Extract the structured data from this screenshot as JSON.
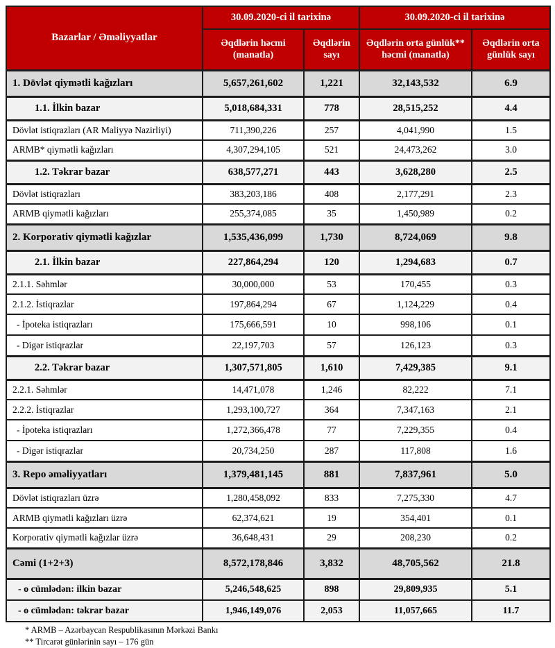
{
  "table": {
    "header": {
      "markets_label": "Bazarlar / Əməliyyatlar",
      "group1_label": "30.09.2020-ci il tarixinə",
      "group2_label": "30.09.2020-ci il tarixinə",
      "columns": [
        "Əqdlərin həcmi (manatla)",
        "Əqdlərin sayı",
        "Əqdlərin orta günlük** həcmi (manatla)",
        "Əqdlərin orta günlük sayı"
      ]
    },
    "rows": [
      {
        "type": "section",
        "label": "1. Dövlət qiymətli kağızları",
        "volume": "5,657,261,602",
        "count": "1,221",
        "avg_volume": "32,143,532",
        "avg_count": "6.9"
      },
      {
        "type": "subsection",
        "label": "1.1. İlkin bazar",
        "volume": "5,018,684,331",
        "count": "778",
        "avg_volume": "28,515,252",
        "avg_count": "4.4"
      },
      {
        "type": "data",
        "label": "Dövlət istiqrazları (AR Maliyyə Nazirliyi)",
        "volume": "711,390,226",
        "count": "257",
        "avg_volume": "4,041,990",
        "avg_count": "1.5"
      },
      {
        "type": "data",
        "label": "ARMB* qiymətli kağızları",
        "volume": "4,307,294,105",
        "count": "521",
        "avg_volume": "24,473,262",
        "avg_count": "3.0"
      },
      {
        "type": "subsection",
        "label": "1.2. Təkrar bazar",
        "volume": "638,577,271",
        "count": "443",
        "avg_volume": "3,628,280",
        "avg_count": "2.5"
      },
      {
        "type": "data",
        "label": "Dövlət istiqrazları",
        "volume": "383,203,186",
        "count": "408",
        "avg_volume": "2,177,291",
        "avg_count": "2.3"
      },
      {
        "type": "data",
        "label": "ARMB qiymətli kağızları",
        "volume": "255,374,085",
        "count": "35",
        "avg_volume": "1,450,989",
        "avg_count": "0.2"
      },
      {
        "type": "section",
        "label": "2. Korporativ qiymətli kağızlar",
        "volume": "1,535,436,099",
        "count": "1,730",
        "avg_volume": "8,724,069",
        "avg_count": "9.8"
      },
      {
        "type": "subsection",
        "label": "2.1. İlkin bazar",
        "volume": "227,864,294",
        "count": "120",
        "avg_volume": "1,294,683",
        "avg_count": "0.7"
      },
      {
        "type": "data",
        "label": "2.1.1. Səhmlər",
        "volume": "30,000,000",
        "count": "53",
        "avg_volume": "170,455",
        "avg_count": "0.3"
      },
      {
        "type": "data",
        "label": "2.1.2. İstiqrazlar",
        "volume": "197,864,294",
        "count": "67",
        "avg_volume": "1,124,229",
        "avg_count": "0.4"
      },
      {
        "type": "data-indent",
        "label": "- İpoteka istiqrazları",
        "volume": "175,666,591",
        "count": "10",
        "avg_volume": "998,106",
        "avg_count": "0.1"
      },
      {
        "type": "data-indent",
        "label": "- Digər istiqrazlar",
        "volume": "22,197,703",
        "count": "57",
        "avg_volume": "126,123",
        "avg_count": "0.3"
      },
      {
        "type": "subsection",
        "label": "2.2. Təkrar bazar",
        "volume": "1,307,571,805",
        "count": "1,610",
        "avg_volume": "7,429,385",
        "avg_count": "9.1"
      },
      {
        "type": "data",
        "label": "2.2.1. Səhmlər",
        "volume": "14,471,078",
        "count": "1,246",
        "avg_volume": "82,222",
        "avg_count": "7.1"
      },
      {
        "type": "data",
        "label": "2.2.2. İstiqrazlar",
        "volume": "1,293,100,727",
        "count": "364",
        "avg_volume": "7,347,163",
        "avg_count": "2.1"
      },
      {
        "type": "data-indent",
        "label": "- İpoteka istiqrazları",
        "volume": "1,272,366,478",
        "count": "77",
        "avg_volume": "7,229,355",
        "avg_count": "0.4"
      },
      {
        "type": "data-indent",
        "label": "- Digər istiqrazlar",
        "volume": "20,734,250",
        "count": "287",
        "avg_volume": "117,808",
        "avg_count": "1.6"
      },
      {
        "type": "section",
        "label": "3. Repo əməliyyatları",
        "volume": "1,379,481,145",
        "count": "881",
        "avg_volume": "7,837,961",
        "avg_count": "5.0"
      },
      {
        "type": "data",
        "label": "Dövlət istiqrazları üzrə",
        "volume": "1,280,458,092",
        "count": "833",
        "avg_volume": "7,275,330",
        "avg_count": "4.7"
      },
      {
        "type": "data",
        "label": "ARMB qiymətli kağızları üzrə",
        "volume": "62,374,621",
        "count": "19",
        "avg_volume": "354,401",
        "avg_count": "0.1"
      },
      {
        "type": "data",
        "label": "Korporativ qiymətli kağızlar üzrə",
        "volume": "36,648,431",
        "count": "29",
        "avg_volume": "208,230",
        "avg_count": "0.2"
      },
      {
        "type": "total",
        "label": "Cəmi (1+2+3)",
        "volume": "8,572,178,846",
        "count": "3,832",
        "avg_volume": "48,705,562",
        "avg_count": "21.8"
      },
      {
        "type": "total-sub",
        "label": "- o cümlədən: ilkin bazar",
        "volume": "5,246,548,625",
        "count": "898",
        "avg_volume": "29,809,935",
        "avg_count": "5.1"
      },
      {
        "type": "total-sub",
        "label": "- o cümlədən: təkrar bazar",
        "volume": "1,946,149,076",
        "count": "2,053",
        "avg_volume": "11,057,665",
        "avg_count": "11.7"
      }
    ]
  },
  "footnotes": [
    "* ARMB – Azərbaycan Respublikasının Mərkəzi Bankı",
    "** Tircarət günlərinin sayı – 176 gün"
  ],
  "colors": {
    "header_bg": "#C00000",
    "header_text": "#FFFFFF",
    "section_bg": "#D9D9D9",
    "subsection_bg": "#F2F2F2",
    "border": "#1C1C1C"
  }
}
